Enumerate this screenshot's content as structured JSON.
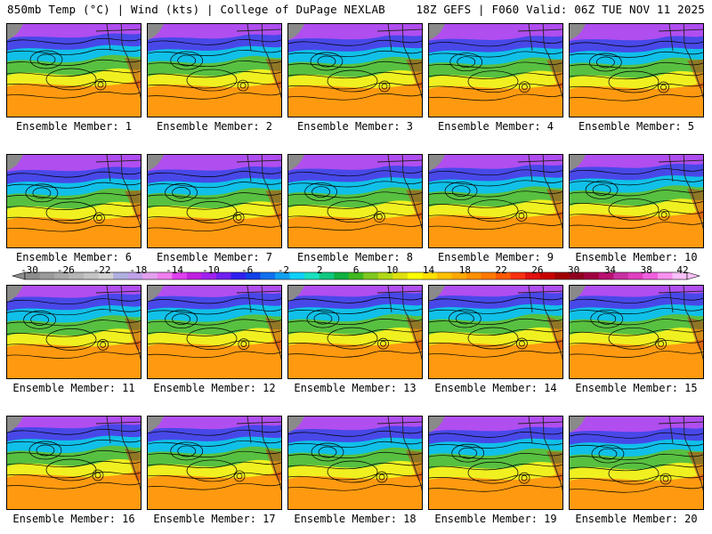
{
  "header": {
    "left": "850mb Temp (°C) | Wind (kts) | College of DuPage NEXLAB",
    "right": "18Z GEFS | F060 Valid: 06Z TUE NOV 11 2025"
  },
  "panels": [
    {
      "label": "Ensemble Member: 1"
    },
    {
      "label": "Ensemble Member: 2"
    },
    {
      "label": "Ensemble Member: 3"
    },
    {
      "label": "Ensemble Member: 4"
    },
    {
      "label": "Ensemble Member: 5"
    },
    {
      "label": "Ensemble Member: 6"
    },
    {
      "label": "Ensemble Member: 7"
    },
    {
      "label": "Ensemble Member: 8"
    },
    {
      "label": "Ensemble Member: 9"
    },
    {
      "label": "Ensemble Member: 10"
    },
    {
      "label": "Ensemble Member: 11"
    },
    {
      "label": "Ensemble Member: 12"
    },
    {
      "label": "Ensemble Member: 13"
    },
    {
      "label": "Ensemble Member: 14"
    },
    {
      "label": "Ensemble Member: 15"
    },
    {
      "label": "Ensemble Member: 16"
    },
    {
      "label": "Ensemble Member: 17"
    },
    {
      "label": "Ensemble Member: 18"
    },
    {
      "label": "Ensemble Member: 19"
    },
    {
      "label": "Ensemble Member: 20"
    }
  ],
  "colorbar": {
    "ticks": [
      "-30",
      "-26",
      "-22",
      "-18",
      "-14",
      "-10",
      "-6",
      "-2",
      "2",
      "6",
      "10",
      "14",
      "18",
      "22",
      "26",
      "30",
      "34",
      "38",
      "42"
    ],
    "colors": [
      "#8c8c8c",
      "#9a9a9a",
      "#a8a8a8",
      "#b6b6b6",
      "#c4c4c4",
      "#d2d2d2",
      "#b0b0e0",
      "#c0a0e8",
      "#e3a0f0",
      "#f07ef0",
      "#e040f0",
      "#c020e0",
      "#a020f0",
      "#7020f0",
      "#3020f0",
      "#1040e8",
      "#1070f0",
      "#10a0f0",
      "#10d0f8",
      "#18e0c0",
      "#10c880",
      "#10b040",
      "#40b820",
      "#80c820",
      "#b0d818",
      "#e0e010",
      "#ffff00",
      "#ffe000",
      "#ffc000",
      "#ffa800",
      "#ff9000",
      "#ff7800",
      "#ff5800",
      "#f83010",
      "#e01010",
      "#c80000",
      "#a00000",
      "#900020",
      "#a00040",
      "#b81070",
      "#c830a0",
      "#e040c0",
      "#f060e0",
      "#f890f0",
      "#fbc0f8"
    ],
    "bands": [
      "#b04ef0",
      "#4848e8",
      "#10c0e8",
      "#58c040",
      "#f0f020",
      "#ff9a10"
    ]
  }
}
